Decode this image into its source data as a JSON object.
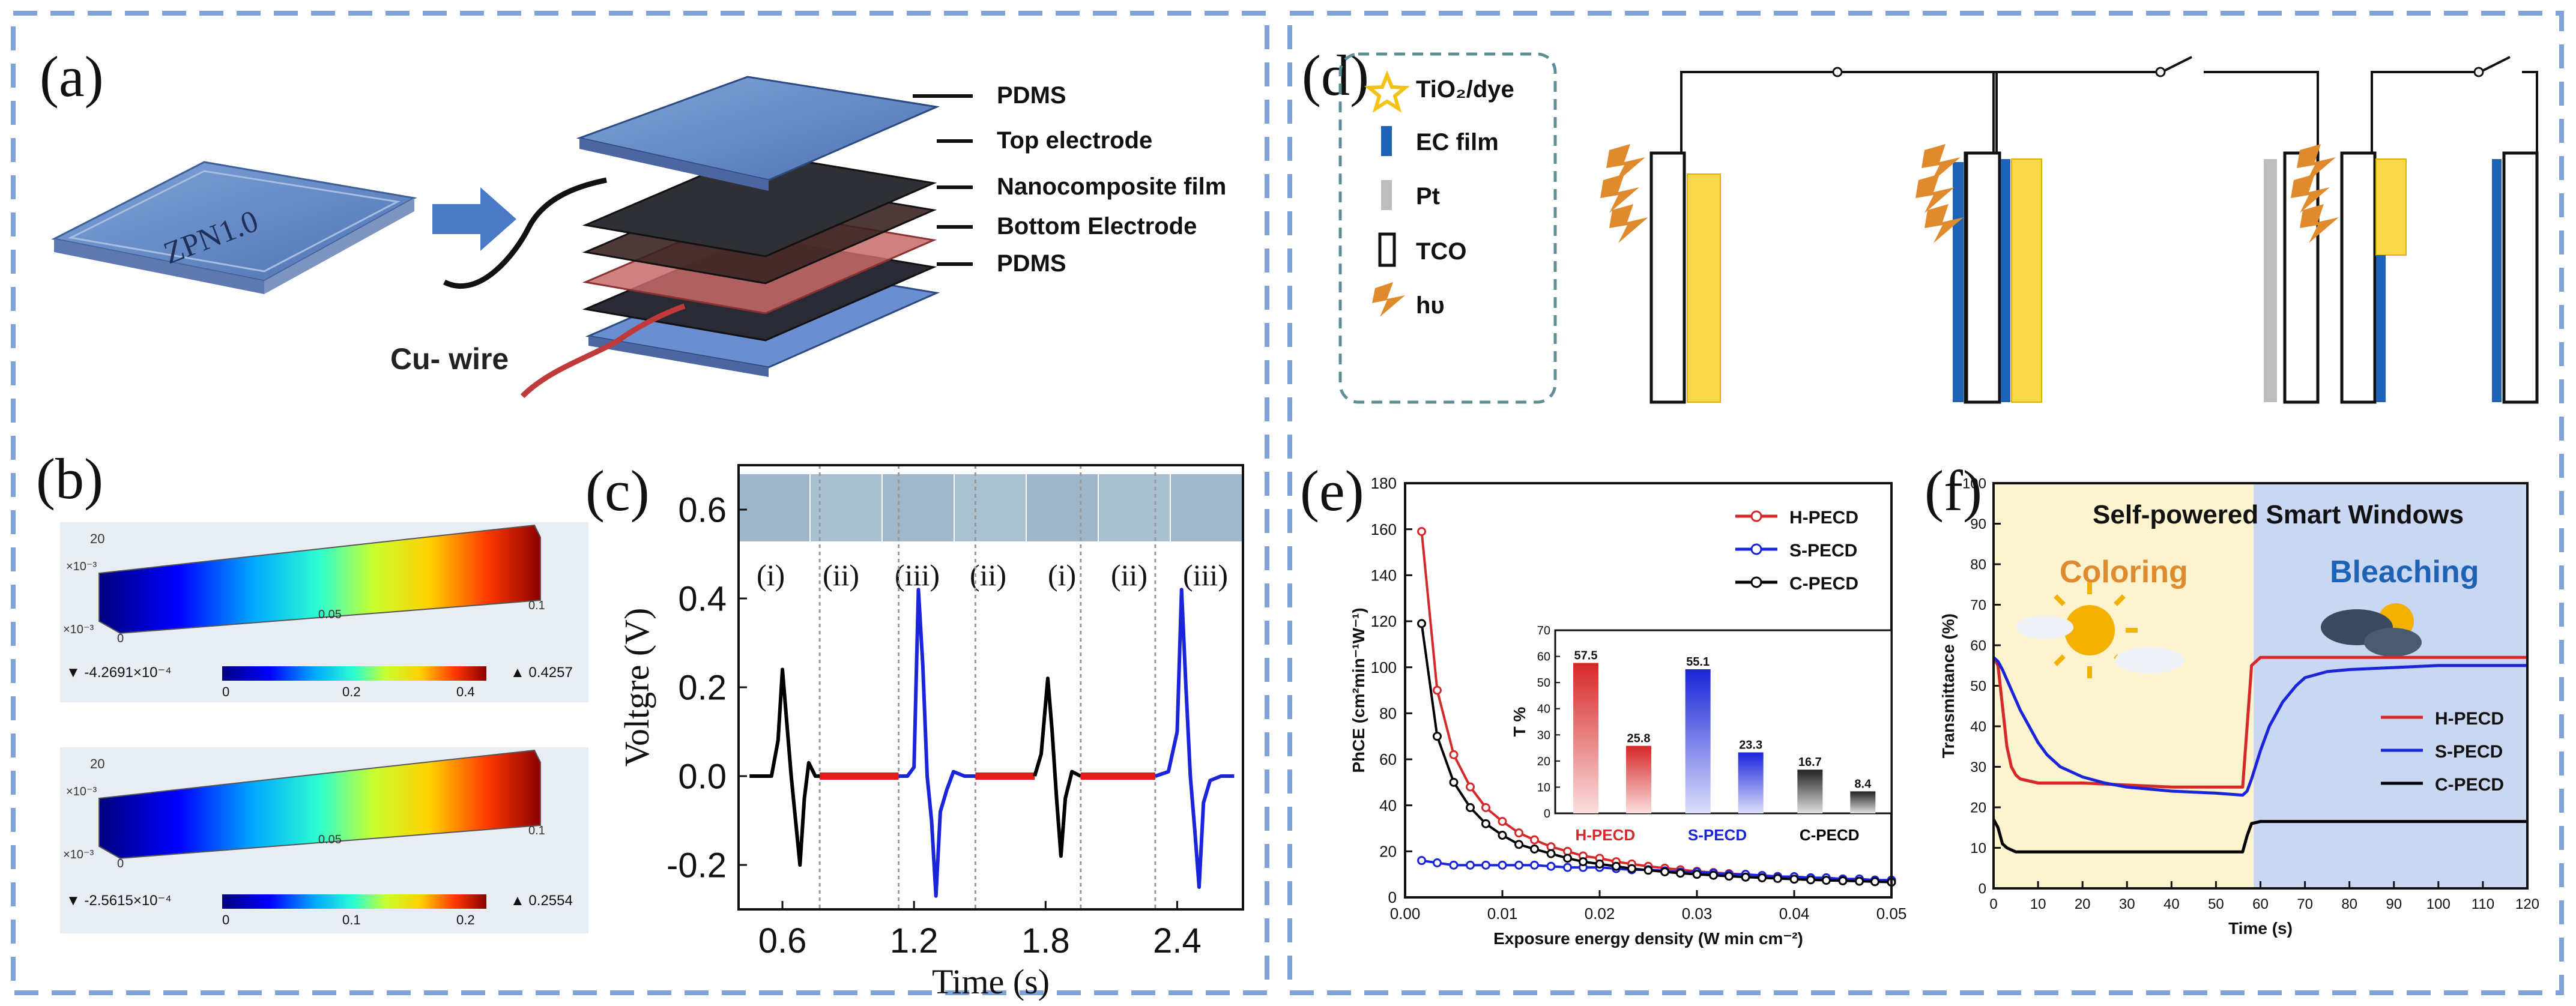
{
  "panel_labels": {
    "a": "(a)",
    "b": "(b)",
    "c": "(c)",
    "d": "(d)",
    "e": "(e)",
    "f": "(f)"
  },
  "a": {
    "device_label": "ZPN1.0",
    "layers": [
      "PDMS",
      "Top electrode",
      "Nanocomposite film",
      "Bottom Electrode",
      "PDMS"
    ],
    "wire_label": "Cu- wire"
  },
  "b": {
    "top": {
      "axis_labels": [
        "20",
        "×10⁻³",
        "×10⁻³",
        "0",
        "0.05",
        "0.1"
      ],
      "min_label": "▼ -4.2691×10⁻⁴",
      "max_label": "▲ 0.4257",
      "scale_ticks": [
        "0",
        "0.2",
        "0.4"
      ]
    },
    "bottom": {
      "axis_labels": [
        "20",
        "×10⁻³",
        "×10⁻³",
        "0",
        "0.05",
        "0.1"
      ],
      "min_label": "▼ -2.5615×10⁻⁴",
      "max_label": "▲ 0.2554",
      "scale_ticks": [
        "0",
        "0.1",
        "0.2"
      ]
    }
  },
  "c": {
    "photo_labels": [
      "(i)",
      "(ii)",
      "(iii)",
      "(ii)",
      "(i)",
      "(ii)",
      "(iii)"
    ]
  },
  "d": {
    "legend": [
      {
        "label": "TiO₂/dye",
        "icon": "star-icon",
        "color": "#f2c214"
      },
      {
        "label": "EC film",
        "icon": "blue-bar-icon",
        "color": "#1d62b5"
      },
      {
        "label": "Pt",
        "icon": "gray-bar-icon",
        "color": "#bdbdbd"
      },
      {
        "label": "TCO",
        "icon": "outline-rect-icon",
        "color": "#000000"
      },
      {
        "label": "hυ",
        "icon": "lightning-icon",
        "color": "#e08a2e"
      }
    ]
  },
  "f": {
    "banner_title": "Self-powered Smart Windows",
    "coloring_label": "Coloring",
    "bleaching_label": "Bleaching"
  },
  "chart_data": [
    {
      "id": "c",
      "type": "line",
      "title": "",
      "xlabel": "Time (s)",
      "ylabel": "Voltgre (V)",
      "xlim": [
        0.4,
        2.7
      ],
      "ylim": [
        -0.3,
        0.7
      ],
      "xticks": [
        0.6,
        1.2,
        1.8,
        2.4
      ],
      "yticks": [
        -0.2,
        0.0,
        0.2,
        0.4,
        0.6
      ],
      "xtick_labels": [
        "0.6",
        "1.2",
        "1.8",
        "2.4"
      ],
      "ytick_labels": [
        "-0.2",
        "0.0",
        "0.2",
        "0.4",
        "0.6"
      ],
      "dashed_lines_x": [
        0.77,
        1.13,
        1.48,
        1.96,
        2.3
      ],
      "series": [
        {
          "name": "segment-black-1",
          "color": "#000000",
          "x": [
            0.45,
            0.5,
            0.55,
            0.58,
            0.6,
            0.62,
            0.64,
            0.66,
            0.68,
            0.7,
            0.72,
            0.75,
            0.77
          ],
          "y": [
            0.0,
            0.0,
            0.0,
            0.08,
            0.24,
            0.12,
            0.0,
            -0.1,
            -0.2,
            -0.05,
            0.03,
            0.0,
            0.0
          ]
        },
        {
          "name": "segment-red-1",
          "color": "#e01b1b",
          "x": [
            0.77,
            0.85,
            0.95,
            1.05,
            1.13
          ],
          "y": [
            0.0,
            0.0,
            0.0,
            0.0,
            0.0
          ]
        },
        {
          "name": "segment-blue-1",
          "color": "#1a24d9",
          "x": [
            1.13,
            1.17,
            1.2,
            1.22,
            1.24,
            1.26,
            1.28,
            1.3,
            1.32,
            1.35,
            1.38,
            1.43,
            1.48
          ],
          "y": [
            0.0,
            0.0,
            0.02,
            0.42,
            0.25,
            0.0,
            -0.1,
            -0.27,
            -0.08,
            -0.03,
            0.01,
            0.0,
            0.0
          ]
        },
        {
          "name": "segment-red-2",
          "color": "#e01b1b",
          "x": [
            1.48,
            1.6,
            1.7,
            1.75
          ],
          "y": [
            0.0,
            0.0,
            0.0,
            0.0
          ]
        },
        {
          "name": "segment-black-2",
          "color": "#000000",
          "x": [
            1.75,
            1.78,
            1.81,
            1.83,
            1.85,
            1.87,
            1.89,
            1.92,
            1.96
          ],
          "y": [
            0.0,
            0.05,
            0.22,
            0.1,
            -0.05,
            -0.18,
            -0.05,
            0.01,
            0.0
          ]
        },
        {
          "name": "segment-red-3",
          "color": "#e01b1b",
          "x": [
            1.96,
            2.1,
            2.2,
            2.3
          ],
          "y": [
            0.0,
            0.0,
            0.0,
            0.0
          ]
        },
        {
          "name": "segment-blue-2",
          "color": "#1a24d9",
          "x": [
            2.3,
            2.36,
            2.4,
            2.42,
            2.44,
            2.46,
            2.48,
            2.5,
            2.52,
            2.55,
            2.6,
            2.66
          ],
          "y": [
            0.0,
            0.01,
            0.1,
            0.42,
            0.2,
            0.0,
            -0.12,
            -0.25,
            -0.06,
            -0.01,
            0.0,
            0.0
          ]
        }
      ]
    },
    {
      "id": "e",
      "type": "line",
      "title": "",
      "xlabel": "Exposure energy density (W min cm⁻²)",
      "ylabel": "PhCE (cm²min⁻¹W⁻¹)",
      "xlim": [
        0,
        0.05
      ],
      "ylim": [
        0,
        180
      ],
      "xticks": [
        0,
        0.01,
        0.02,
        0.03,
        0.04,
        0.05
      ],
      "xtick_labels": [
        "0.00",
        "0.01",
        "0.02",
        "0.03",
        "0.04",
        "0.05"
      ],
      "yticks": [
        0,
        20,
        40,
        60,
        80,
        100,
        120,
        140,
        160,
        180
      ],
      "ytick_labels": [
        "0",
        "20",
        "40",
        "60",
        "80",
        "100",
        "120",
        "140",
        "160",
        "180"
      ],
      "legend": [
        "H-PECD",
        "S-PECD",
        "C-PECD"
      ],
      "series": [
        {
          "name": "H-PECD",
          "color": "#d62828",
          "x": [
            0.0017,
            0.0033,
            0.005,
            0.0067,
            0.0083,
            0.01,
            0.0117,
            0.0133,
            0.015,
            0.0167,
            0.0183,
            0.02,
            0.0217,
            0.0233,
            0.025,
            0.0267,
            0.0283,
            0.03,
            0.0317,
            0.0333,
            0.035,
            0.0367,
            0.0383,
            0.04,
            0.0417,
            0.0433,
            0.045,
            0.0467,
            0.0483,
            0.05
          ],
          "y": [
            159,
            90,
            62,
            48,
            39,
            33,
            28,
            25,
            22,
            20,
            18,
            17,
            15.5,
            14.5,
            13.5,
            12.7,
            12,
            11.3,
            10.8,
            10.3,
            9.9,
            9.5,
            9.1,
            8.8,
            8.5,
            8.2,
            7.9,
            7.7,
            7.5,
            7.3
          ]
        },
        {
          "name": "S-PECD",
          "color": "#1a24d9",
          "x": [
            0.0017,
            0.0033,
            0.005,
            0.0067,
            0.0083,
            0.01,
            0.0117,
            0.0133,
            0.015,
            0.0167,
            0.0183,
            0.02,
            0.0217,
            0.0233,
            0.025,
            0.0267,
            0.0283,
            0.03,
            0.0317,
            0.0333,
            0.035,
            0.0367,
            0.0383,
            0.04,
            0.0417,
            0.0433,
            0.045,
            0.0467,
            0.0483,
            0.05
          ],
          "y": [
            16,
            15,
            14,
            14,
            14,
            14,
            14,
            14,
            13.5,
            13,
            13,
            13,
            12.5,
            12,
            12,
            11.5,
            11,
            11,
            10.5,
            10,
            10,
            9.5,
            9,
            9,
            8.5,
            8.5,
            8,
            8,
            7.5,
            7.5
          ]
        },
        {
          "name": "C-PECD",
          "color": "#000000",
          "x": [
            0.0017,
            0.0033,
            0.005,
            0.0067,
            0.0083,
            0.01,
            0.0117,
            0.0133,
            0.015,
            0.0167,
            0.0183,
            0.02,
            0.0217,
            0.0233,
            0.025,
            0.0267,
            0.0283,
            0.03,
            0.0317,
            0.0333,
            0.035,
            0.0367,
            0.0383,
            0.04,
            0.0417,
            0.0433,
            0.045,
            0.0467,
            0.0483,
            0.05
          ],
          "y": [
            119,
            70,
            50,
            39,
            32,
            27,
            23,
            21,
            19,
            17,
            15.5,
            14.5,
            13.5,
            12.5,
            11.8,
            11.1,
            10.5,
            10,
            9.6,
            9.2,
            8.8,
            8.5,
            8.2,
            7.9,
            7.6,
            7.4,
            7.2,
            7,
            6.8,
            6.6
          ]
        }
      ]
    },
    {
      "id": "e-inset",
      "type": "bar",
      "ylabel": "T %",
      "ylim": [
        0,
        70
      ],
      "yticks": [
        0,
        10,
        20,
        30,
        40,
        50,
        60,
        70
      ],
      "ytick_labels": [
        "0",
        "10",
        "20",
        "30",
        "40",
        "50",
        "60",
        "70"
      ],
      "groups": [
        "H-PECD",
        "S-PECD",
        "C-PECD"
      ],
      "group_colors": [
        "#d62828",
        "#1a24d9",
        "#000000"
      ],
      "values": [
        [
          57.5,
          25.8
        ],
        [
          55.1,
          23.3
        ],
        [
          16.7,
          8.4
        ]
      ],
      "value_labels": [
        [
          "57.5",
          "25.8"
        ],
        [
          "55.1",
          "23.3"
        ],
        [
          "16.7",
          "8.4"
        ]
      ]
    },
    {
      "id": "f",
      "type": "line",
      "xlabel": "Time (s)",
      "ylabel": "Transmittance (%)",
      "xlim": [
        0,
        120
      ],
      "ylim": [
        0,
        100
      ],
      "xticks": [
        0,
        10,
        20,
        30,
        40,
        50,
        60,
        70,
        80,
        90,
        100,
        110,
        120
      ],
      "xtick_labels": [
        "0",
        "10",
        "20",
        "30",
        "40",
        "50",
        "60",
        "70",
        "80",
        "90",
        "100",
        "110",
        "120"
      ],
      "yticks": [
        0,
        10,
        20,
        30,
        40,
        50,
        60,
        70,
        80,
        90,
        100
      ],
      "ytick_labels": [
        "0",
        "10",
        "20",
        "30",
        "40",
        "50",
        "60",
        "70",
        "80",
        "90",
        "100"
      ],
      "legend": [
        "H-PECD",
        "S-PECD",
        "C-PECD"
      ],
      "series": [
        {
          "name": "H-PECD",
          "color": "#d62828",
          "x": [
            0,
            1,
            2,
            3,
            4,
            5,
            6,
            8,
            10,
            15,
            20,
            30,
            40,
            50,
            56,
            57,
            58,
            60,
            65,
            70,
            80,
            90,
            100,
            110,
            120
          ],
          "y": [
            57,
            55,
            45,
            35,
            30,
            28,
            27,
            26.5,
            26,
            26,
            26,
            25.5,
            25,
            25,
            25,
            40,
            55,
            57,
            57,
            57,
            57,
            57,
            57,
            57,
            57
          ]
        },
        {
          "name": "S-PECD",
          "color": "#1a24d9",
          "x": [
            0,
            1,
            2,
            4,
            6,
            8,
            10,
            12,
            15,
            18,
            20,
            25,
            30,
            40,
            50,
            56,
            57,
            58,
            60,
            62,
            65,
            68,
            70,
            75,
            80,
            90,
            100,
            110,
            120
          ],
          "y": [
            57,
            56,
            54,
            49,
            44,
            40,
            36,
            33,
            30,
            28.5,
            27.5,
            26,
            25,
            24,
            23.5,
            23,
            24,
            27,
            34,
            40,
            46,
            50,
            52,
            53.5,
            54,
            54.5,
            55,
            55,
            55
          ]
        },
        {
          "name": "C-PECD",
          "color": "#000000",
          "x": [
            0,
            1,
            2,
            3,
            4,
            5,
            8,
            10,
            20,
            30,
            40,
            50,
            56,
            57,
            58,
            60,
            70,
            80,
            90,
            100,
            110,
            120
          ],
          "y": [
            17,
            15,
            11,
            10,
            9.5,
            9,
            9,
            9,
            9,
            9,
            9,
            9,
            9,
            13,
            16,
            16.5,
            16.5,
            16.5,
            16.5,
            16.5,
            16.5,
            16.5
          ]
        }
      ]
    }
  ]
}
